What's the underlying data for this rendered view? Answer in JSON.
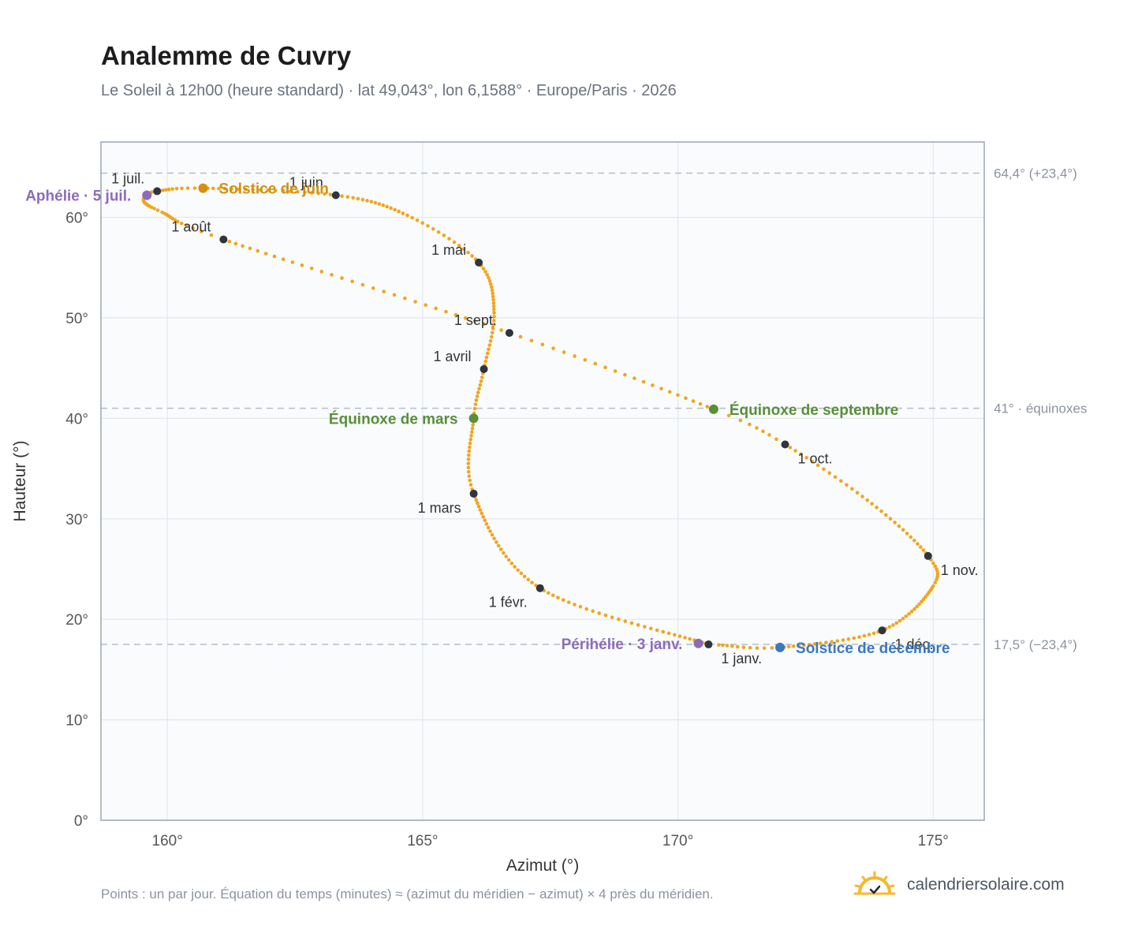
{
  "header": {
    "title": "Analemme de Cuvry",
    "subtitle": "Le Soleil à 12h00 (heure standard) · lat 49,043°, lon 6,1588° · Europe/Paris · 2026"
  },
  "footer": {
    "note": "Points : un par jour. Équation du temps (minutes) ≈ (azimut du méridien − azimut) × 4 près du méridien.",
    "brand": "calendriersolaire.com",
    "brand_icon": "sun-check-icon"
  },
  "chart_data": {
    "type": "scatter",
    "xlabel": "Azimut (°)",
    "ylabel": "Hauteur (°)",
    "xlim": [
      158.7,
      176.0
    ],
    "ylim": [
      0,
      67.5
    ],
    "xticks": [
      160,
      165,
      170,
      175
    ],
    "xtick_labels": [
      "160°",
      "165°",
      "170°",
      "175°"
    ],
    "yticks": [
      0,
      10,
      20,
      30,
      40,
      50,
      60
    ],
    "ytick_labels": [
      "0°",
      "10°",
      "20°",
      "30°",
      "40°",
      "50°",
      "60°"
    ],
    "grid": true,
    "curve_color": "#f2a51e",
    "reference_lines": [
      {
        "y": 64.4,
        "label": "64,4° (+23,4°)"
      },
      {
        "y": 41.0,
        "label": "41° · équinoxes"
      },
      {
        "y": 17.5,
        "label": "17,5° (−23,4°)"
      }
    ],
    "daily_path": {
      "description_points_per": "day",
      "anchors": [
        {
          "day": 1,
          "x": 170.6,
          "y": 17.5
        },
        {
          "day": 32,
          "x": 167.3,
          "y": 23.1
        },
        {
          "day": 60,
          "x": 166.0,
          "y": 32.5
        },
        {
          "day": 79,
          "x": 166.0,
          "y": 40.0
        },
        {
          "day": 91,
          "x": 166.2,
          "y": 44.9
        },
        {
          "day": 105,
          "x": 166.4,
          "y": 50.5
        },
        {
          "day": 121,
          "x": 166.1,
          "y": 55.5
        },
        {
          "day": 136,
          "x": 164.7,
          "y": 60.2
        },
        {
          "day": 152,
          "x": 163.3,
          "y": 62.2
        },
        {
          "day": 172,
          "x": 160.7,
          "y": 62.9
        },
        {
          "day": 182,
          "x": 159.8,
          "y": 62.6
        },
        {
          "day": 186,
          "x": 159.6,
          "y": 62.2
        },
        {
          "day": 192,
          "x": 159.55,
          "y": 61.5
        },
        {
          "day": 200,
          "x": 159.9,
          "y": 60.5
        },
        {
          "day": 213,
          "x": 161.1,
          "y": 57.8
        },
        {
          "day": 244,
          "x": 166.7,
          "y": 48.5
        },
        {
          "day": 266,
          "x": 170.7,
          "y": 40.9
        },
        {
          "day": 274,
          "x": 172.1,
          "y": 37.4
        },
        {
          "day": 290,
          "x": 173.8,
          "y": 31.5
        },
        {
          "day": 305,
          "x": 174.9,
          "y": 26.3
        },
        {
          "day": 315,
          "x": 175.0,
          "y": 23.3
        },
        {
          "day": 335,
          "x": 174.0,
          "y": 18.9
        },
        {
          "day": 355,
          "x": 172.0,
          "y": 17.2
        },
        {
          "day": 365,
          "x": 170.8,
          "y": 17.45
        },
        {
          "day": 366,
          "x": 170.6,
          "y": 17.5
        }
      ]
    },
    "month_markers": [
      {
        "label": "1 janv.",
        "x": 170.6,
        "y": 17.5,
        "pos": "below-right"
      },
      {
        "label": "1 févr.",
        "x": 167.3,
        "y": 23.1,
        "pos": "below-left"
      },
      {
        "label": "1 mars",
        "x": 166.0,
        "y": 32.5,
        "pos": "below-left"
      },
      {
        "label": "1 avril",
        "x": 166.2,
        "y": 44.9,
        "pos": "above-left"
      },
      {
        "label": "1 mai",
        "x": 166.1,
        "y": 55.5,
        "pos": "above-left"
      },
      {
        "label": "1 juin",
        "x": 163.3,
        "y": 62.2,
        "pos": "above-left"
      },
      {
        "label": "1 juil.",
        "x": 159.8,
        "y": 62.6,
        "pos": "above-left"
      },
      {
        "label": "1 août",
        "x": 161.1,
        "y": 57.8,
        "pos": "above-left"
      },
      {
        "label": "1 sept.",
        "x": 166.7,
        "y": 48.5,
        "pos": "above-left"
      },
      {
        "label": "1 oct.",
        "x": 172.1,
        "y": 37.4,
        "pos": "below-right"
      },
      {
        "label": "1 nov.",
        "x": 174.9,
        "y": 26.3,
        "pos": "below-right"
      },
      {
        "label": "1 déc.",
        "x": 174.0,
        "y": 18.9,
        "pos": "below-right"
      }
    ],
    "events": [
      {
        "label": "Solstice de juin",
        "x": 160.7,
        "y": 62.9,
        "color": "#d4900f",
        "side": "right"
      },
      {
        "label": "Aphélie · 5 juil.",
        "x": 159.6,
        "y": 62.2,
        "color": "#8e6bb8",
        "side": "left"
      },
      {
        "label": "Équinoxe de mars",
        "x": 166.0,
        "y": 40.0,
        "color": "#5a8f3a",
        "side": "left"
      },
      {
        "label": "Équinoxe de septembre",
        "x": 170.7,
        "y": 40.9,
        "color": "#5a8f3a",
        "side": "right"
      },
      {
        "label": "Périhélie · 3 janv.",
        "x": 170.4,
        "y": 17.6,
        "color": "#8e6bb8",
        "side": "left"
      },
      {
        "label": "Solstice de décembre",
        "x": 172.0,
        "y": 17.2,
        "color": "#3a78c0",
        "side": "right"
      }
    ]
  }
}
